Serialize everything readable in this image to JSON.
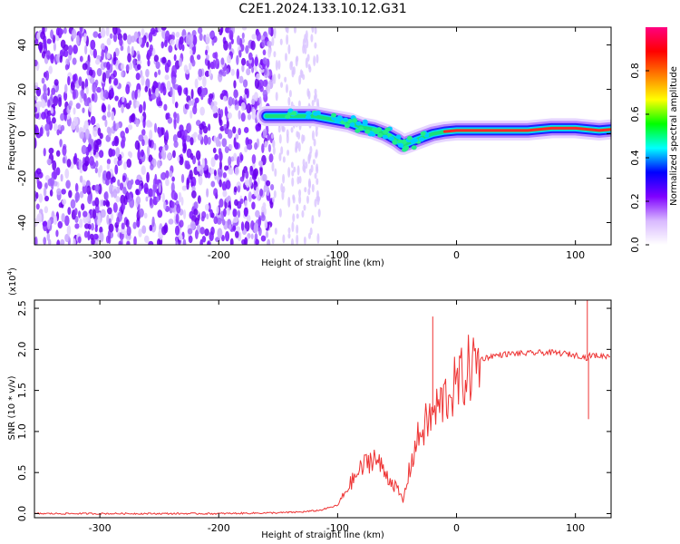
{
  "title": "C2E1.2024.133.10.12.G31",
  "chart_data": [
    {
      "type": "heatmap",
      "xlabel": "Height of straight line (km)",
      "ylabel": "Frequency (Hz)",
      "xlim": [
        -355,
        130
      ],
      "ylim": [
        -50,
        48
      ],
      "x_ticks": [
        -300,
        -200,
        -100,
        0,
        100
      ],
      "y_ticks": [
        -40,
        -20,
        0,
        20,
        40
      ],
      "colorbar": {
        "label": "Normalized spectral amplitude",
        "range": [
          0,
          1
        ],
        "ticks": [
          0.0,
          0.2,
          0.4,
          0.6,
          0.8
        ],
        "colormap": [
          "#ffffff",
          "#d8b8ff",
          "#7f00ff",
          "#0000ff",
          "#00ffff",
          "#00ff00",
          "#ffff00",
          "#ff7f00",
          "#ff0000",
          "#ff0080"
        ]
      },
      "ridge_frequency": {
        "x": [
          -160,
          -140,
          -120,
          -100,
          -90,
          -80,
          -70,
          -60,
          -50,
          -45,
          -40,
          -30,
          -20,
          -10,
          0,
          20,
          40,
          60,
          80,
          100,
          120,
          130
        ],
        "y": [
          8,
          8,
          8,
          6,
          5,
          3,
          2,
          0,
          -3,
          -5,
          -4,
          -2,
          0,
          1,
          1.5,
          1.5,
          1.5,
          1.5,
          2.5,
          2.5,
          1.5,
          2
        ]
      },
      "noise_region": {
        "x_range": [
          -355,
          -155
        ],
        "density": "high"
      },
      "sparse_region": {
        "x_range": [
          -155,
          -115
        ],
        "density": "low"
      }
    },
    {
      "type": "line",
      "xlabel": "Height of straight line (km)",
      "ylabel": "SNR (10 * v/v)",
      "y_scale_label": "(x10",
      "y_scale_exponent": "4",
      "xlim": [
        -355,
        130
      ],
      "ylim": [
        -0.05,
        2.6
      ],
      "x_ticks": [
        -300,
        -200,
        -100,
        0,
        100
      ],
      "y_ticks": [
        "0.0",
        "0.5",
        "1.0",
        "1.5",
        "2.0",
        "2.5"
      ],
      "color": "#ee3333",
      "series": [
        {
          "x": [
            -355,
            -300,
            -250,
            -200,
            -150,
            -130,
            -115,
            -100,
            -90,
            -80,
            -70,
            -60,
            -50,
            -45,
            -40,
            -35,
            -30,
            -25,
            -20,
            -15,
            -10,
            -5,
            0,
            5,
            10,
            20,
            30,
            40,
            50,
            60,
            70,
            80,
            90,
            100,
            105,
            108,
            110,
            112,
            115,
            120,
            130
          ],
          "y": [
            0.0,
            0.0,
            0.0,
            0.0,
            0.01,
            0.02,
            0.04,
            0.1,
            0.35,
            0.55,
            0.7,
            0.5,
            0.3,
            0.15,
            0.5,
            0.8,
            1.0,
            1.1,
            1.2,
            1.3,
            1.4,
            1.5,
            1.55,
            1.65,
            1.75,
            1.88,
            1.92,
            1.94,
            1.95,
            1.95,
            1.96,
            1.96,
            1.95,
            1.93,
            1.92,
            1.9,
            1.9,
            1.92,
            1.93,
            1.92,
            1.92
          ]
        }
      ],
      "spikes": [
        {
          "x": -20,
          "y": 2.4
        },
        {
          "x": 110,
          "y": 2.6
        },
        {
          "x": 111,
          "y": 1.15
        }
      ]
    }
  ]
}
